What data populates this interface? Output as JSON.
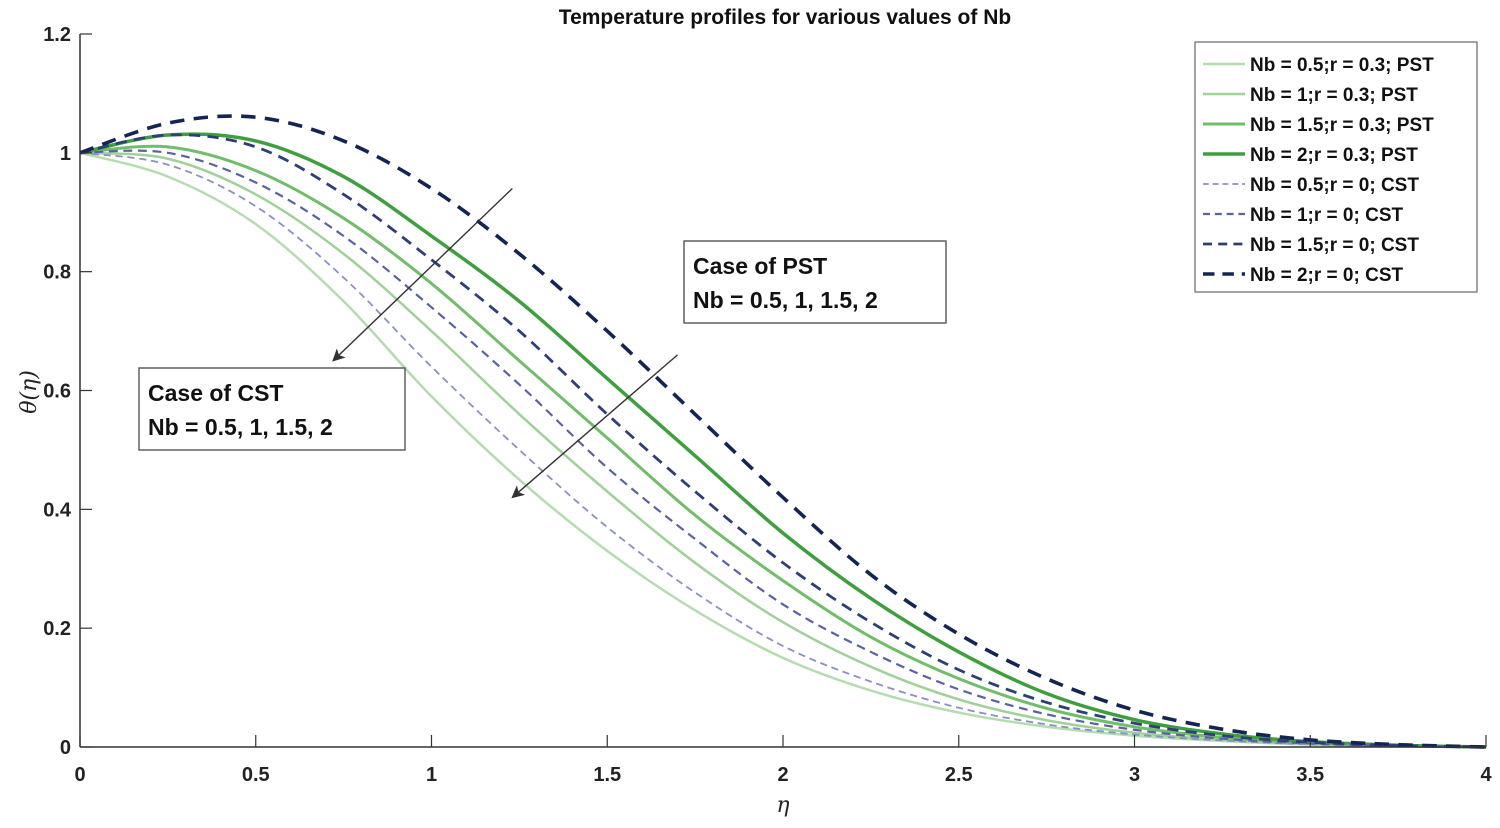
{
  "chart_data": {
    "type": "line",
    "title": "Temperature profiles for various values of Nb",
    "xlabel": "η",
    "ylabel": "θ(η)",
    "xlim": [
      0,
      4
    ],
    "ylim": [
      0,
      1.2
    ],
    "xticks": [
      0,
      0.5,
      1,
      1.5,
      2,
      2.5,
      3,
      3.5,
      4
    ],
    "xtick_labels": [
      "0",
      "0.5",
      "1",
      "1.5",
      "2",
      "2.5",
      "3",
      "3.5",
      "4"
    ],
    "yticks": [
      0,
      0.2,
      0.4,
      0.6,
      0.8,
      1,
      1.2
    ],
    "ytick_labels": [
      "0",
      "0.2",
      "0.4",
      "0.6",
      "0.8",
      "1",
      "1.2"
    ],
    "legend_position": "top-right",
    "x": [
      0,
      0.25,
      0.5,
      0.75,
      1,
      1.25,
      1.5,
      1.75,
      2,
      2.25,
      2.5,
      2.75,
      3,
      3.25,
      3.5,
      3.75,
      4
    ],
    "series": [
      {
        "name": "Nb = 0.5;r = 0.3; PST",
        "style": "solid",
        "color": "#b5dcb0",
        "width": 2.5,
        "values": [
          1.0,
          0.96,
          0.88,
          0.75,
          0.59,
          0.45,
          0.33,
          0.23,
          0.15,
          0.095,
          0.058,
          0.034,
          0.019,
          0.01,
          0.004,
          0.001,
          0.0
        ]
      },
      {
        "name": "Nb = 1;r = 0.3; PST",
        "style": "solid",
        "color": "#9fd198",
        "width": 2.5,
        "values": [
          1.0,
          0.99,
          0.93,
          0.83,
          0.7,
          0.56,
          0.43,
          0.31,
          0.21,
          0.135,
          0.08,
          0.045,
          0.024,
          0.012,
          0.005,
          0.0015,
          0.0
        ]
      },
      {
        "name": "Nb = 1.5;r = 0.3; PST",
        "style": "solid",
        "color": "#72bd6a",
        "width": 3,
        "values": [
          1.0,
          1.01,
          0.97,
          0.89,
          0.78,
          0.65,
          0.52,
          0.39,
          0.28,
          0.185,
          0.115,
          0.065,
          0.034,
          0.016,
          0.007,
          0.002,
          0.0
        ]
      },
      {
        "name": "Nb = 2;r = 0.3; PST",
        "style": "solid",
        "color": "#3f9f3f",
        "width": 3.5,
        "values": [
          1.0,
          1.03,
          1.02,
          0.96,
          0.86,
          0.75,
          0.62,
          0.49,
          0.36,
          0.25,
          0.16,
          0.09,
          0.046,
          0.022,
          0.009,
          0.003,
          0.0
        ]
      },
      {
        "name": "Nb = 0.5;r = 0; CST",
        "style": "dashed",
        "color": "#8a8fc6",
        "width": 1.8,
        "values": [
          1.0,
          0.98,
          0.91,
          0.79,
          0.64,
          0.5,
          0.37,
          0.26,
          0.17,
          0.11,
          0.066,
          0.038,
          0.021,
          0.011,
          0.0045,
          0.0012,
          0.0
        ]
      },
      {
        "name": "Nb = 1;r = 0; CST",
        "style": "dashed",
        "color": "#5a62a0",
        "width": 2.2,
        "values": [
          1.0,
          1.0,
          0.95,
          0.86,
          0.74,
          0.61,
          0.47,
          0.35,
          0.24,
          0.16,
          0.097,
          0.055,
          0.029,
          0.014,
          0.006,
          0.0018,
          0.0
        ]
      },
      {
        "name": "Nb = 1.5;r = 0; CST",
        "style": "dashed",
        "color": "#2e3f78",
        "width": 2.8,
        "values": [
          1.0,
          1.03,
          1.01,
          0.93,
          0.82,
          0.7,
          0.56,
          0.43,
          0.31,
          0.21,
          0.13,
          0.075,
          0.04,
          0.019,
          0.008,
          0.0025,
          0.0
        ]
      },
      {
        "name": "Nb = 2;r = 0; CST",
        "style": "dashed",
        "color": "#142554",
        "width": 3.6,
        "values": [
          1.0,
          1.05,
          1.06,
          1.02,
          0.94,
          0.83,
          0.7,
          0.56,
          0.42,
          0.29,
          0.19,
          0.115,
          0.062,
          0.03,
          0.012,
          0.004,
          0.0
        ]
      }
    ],
    "annotations": [
      {
        "lines": [
          "Case of PST",
          "Nb = 0.5, 1, 1.5, 2"
        ],
        "arrow_from": [
          1.7,
          0.66
        ],
        "arrow_to": [
          1.23,
          0.42
        ]
      },
      {
        "lines": [
          "Case of CST",
          "Nb = 0.5, 1, 1.5, 2"
        ],
        "arrow_from": [
          1.23,
          0.94
        ],
        "arrow_to": [
          0.72,
          0.65
        ]
      }
    ]
  }
}
